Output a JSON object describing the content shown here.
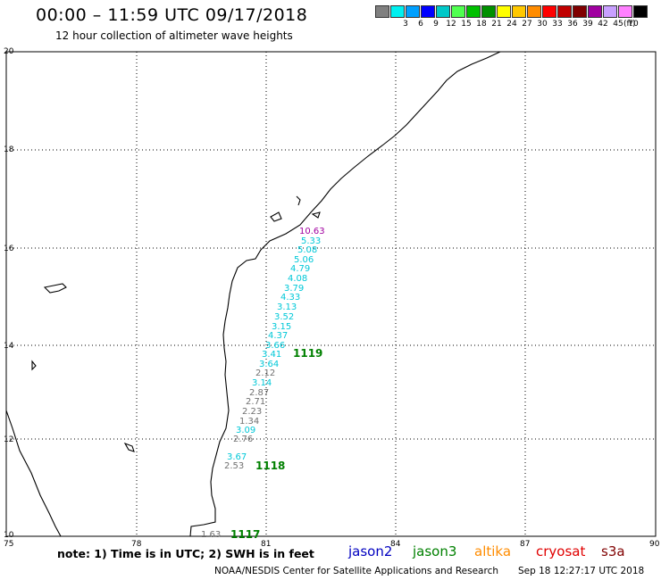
{
  "header": {
    "title": "00:00  –  11:59  UTC  09/17/2018",
    "subtitle": "12 hour collection of altimeter wave heights"
  },
  "legend": {
    "unit": "(ft)",
    "items": [
      {
        "label": "",
        "color": "#808080"
      },
      {
        "label": "3",
        "color": "#00f0f0"
      },
      {
        "label": "6",
        "color": "#00a0ff"
      },
      {
        "label": "9",
        "color": "#0000ff"
      },
      {
        "label": "12",
        "color": "#00c8c8"
      },
      {
        "label": "15",
        "color": "#50ff50"
      },
      {
        "label": "18",
        "color": "#00c000"
      },
      {
        "label": "21",
        "color": "#009000"
      },
      {
        "label": "24",
        "color": "#ffff00"
      },
      {
        "label": "27",
        "color": "#ffc800"
      },
      {
        "label": "30",
        "color": "#ff8c00"
      },
      {
        "label": "33",
        "color": "#ff0000"
      },
      {
        "label": "36",
        "color": "#c00000"
      },
      {
        "label": "39",
        "color": "#800000"
      },
      {
        "label": "42",
        "color": "#a000a0"
      },
      {
        "label": "45",
        "color": "#c8a0ff"
      },
      {
        "label": "70",
        "color": "#ff80ff"
      },
      {
        "label": "",
        "color": "#000000"
      }
    ]
  },
  "axes": {
    "x_ticks": [
      "75",
      "78",
      "81",
      "84",
      "87",
      "90"
    ],
    "y_ticks": [
      "20",
      "18",
      "16",
      "14",
      "12",
      "10"
    ]
  },
  "wave_labels": [
    {
      "text": "10.63",
      "color": "#a000a0"
    },
    {
      "text": "5.33",
      "color": "#00c8d8"
    },
    {
      "text": "5.08",
      "color": "#00c8d8"
    },
    {
      "text": "5.06",
      "color": "#00c8d8"
    },
    {
      "text": "4.79",
      "color": "#00c8d8"
    },
    {
      "text": "4.08",
      "color": "#00c8d8"
    },
    {
      "text": "3.79",
      "color": "#00c8d8"
    },
    {
      "text": "4.33",
      "color": "#00c8d8"
    },
    {
      "text": "3.13",
      "color": "#00c8d8"
    },
    {
      "text": "3.52",
      "color": "#00c8d8"
    },
    {
      "text": "3.15",
      "color": "#00c8d8"
    },
    {
      "text": "4.37",
      "color": "#00c8d8"
    },
    {
      "text": "3.66",
      "color": "#00c8d8"
    },
    {
      "text": "3.41",
      "color": "#00c8d8"
    },
    {
      "text": "3.64",
      "color": "#00c8d8"
    },
    {
      "text": "2.12",
      "color": "#707070"
    },
    {
      "text": "3.14",
      "color": "#00c8d8"
    },
    {
      "text": "2.87",
      "color": "#707070"
    },
    {
      "text": "2.71",
      "color": "#707070"
    },
    {
      "text": "2.23",
      "color": "#707070"
    },
    {
      "text": "1.34",
      "color": "#707070"
    },
    {
      "text": "3.09",
      "color": "#00c8d8"
    },
    {
      "text": "2.76",
      "color": "#707070"
    },
    {
      "text": "3.67",
      "color": "#00c8d8"
    },
    {
      "text": "2.53",
      "color": "#707070"
    },
    {
      "text": "1.63",
      "color": "#707070"
    }
  ],
  "pass_labels": [
    "1119",
    "1118",
    "1117"
  ],
  "pass_color": "#008000",
  "footer": {
    "note": "note:  1) Time is in UTC;  2) SWH is in feet",
    "satellites": [
      {
        "label": "jason2",
        "color": "#0000c0"
      },
      {
        "label": "jason3",
        "color": "#008000"
      },
      {
        "label": "altika",
        "color": "#ff8c00"
      },
      {
        "label": "cryosat",
        "color": "#e00000"
      },
      {
        "label": "s3a",
        "color": "#800000"
      }
    ],
    "credit": "NOAA/NESDIS Center for Satellite Applications and Research",
    "timestamp": "Sep 18 12:27:17 UTC 2018"
  }
}
